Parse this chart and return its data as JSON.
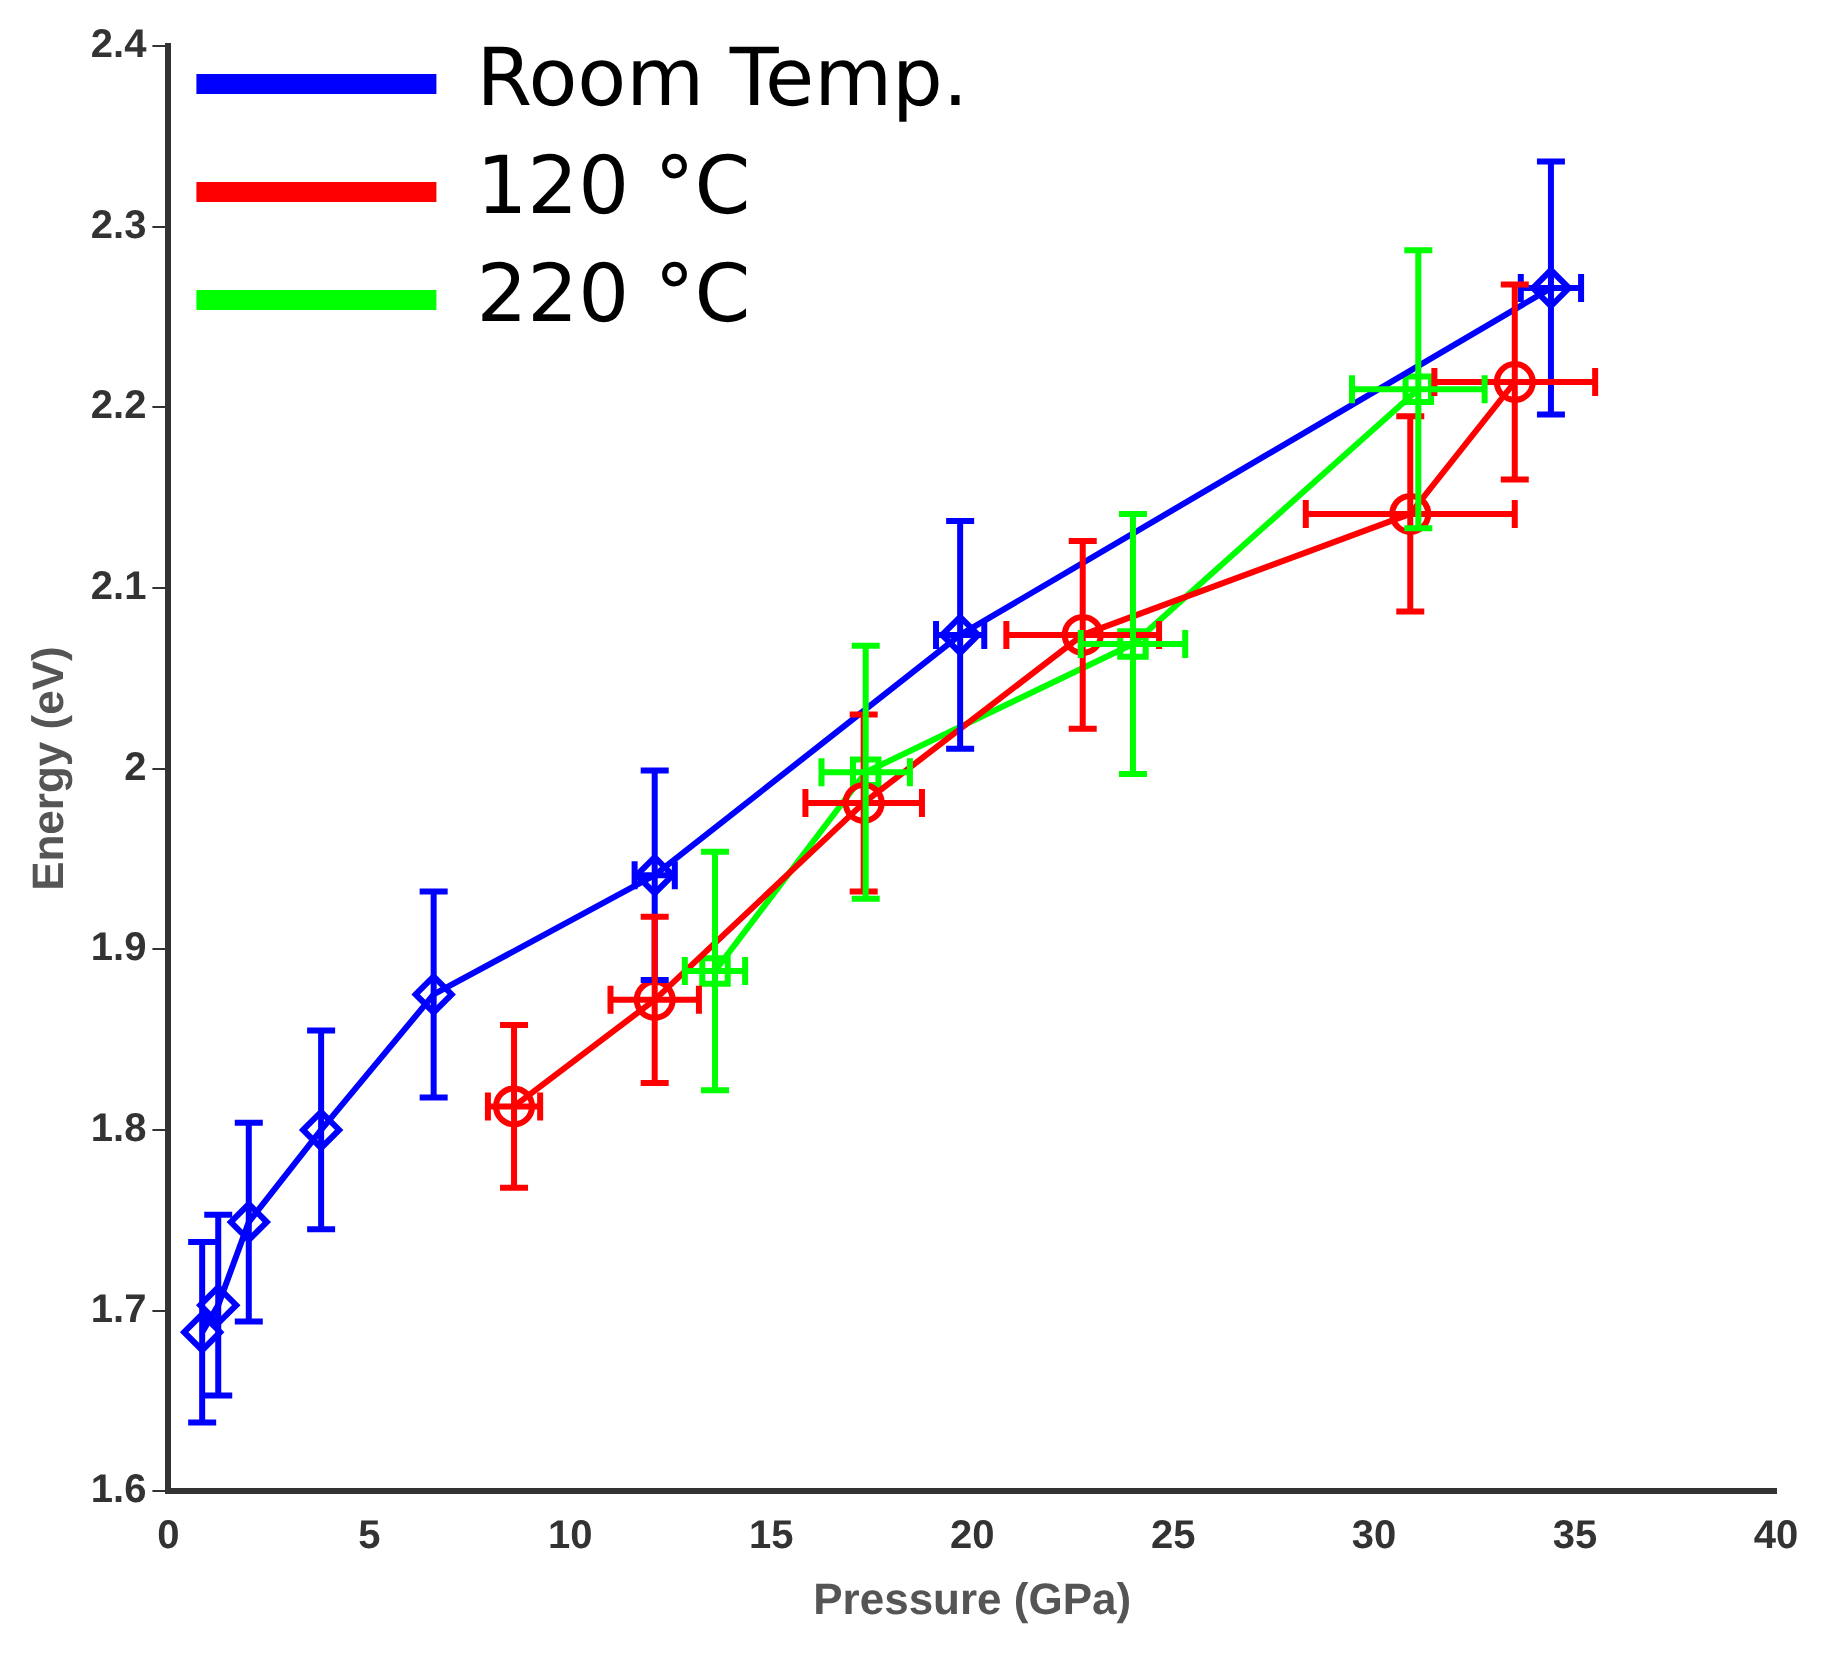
{
  "chart_data": {
    "type": "line",
    "xlabel": "Pressure (GPa)",
    "ylabel": "Energy (eV)",
    "xlim": [
      0,
      40
    ],
    "xticks": [
      0,
      5,
      10,
      15,
      20,
      25,
      30,
      35,
      40
    ],
    "ylim": [
      1.6,
      2.4
    ],
    "yticks": [
      1.6,
      1.7,
      1.8,
      1.9,
      2,
      2.1,
      2.2,
      2.3,
      2.4
    ],
    "grid": false,
    "legend": "top left",
    "line_style": "solid",
    "series": [
      {
        "name": "Room Temp.",
        "color": "#0000ff",
        "marker": "diamond",
        "x": [
          0.84,
          1.24,
          2.0,
          3.8,
          6.6,
          12.1,
          19.7,
          34.4
        ],
        "values": [
          1.688,
          1.703,
          1.749,
          1.8,
          1.875,
          1.941,
          2.074,
          2.266
        ],
        "errors": [
          0.05,
          0.05,
          0.055,
          0.055,
          0.057,
          0.058,
          0.063,
          0.07
        ],
        "xerrors": [
          null,
          null,
          null,
          null,
          null,
          0.5,
          0.6,
          0.75
        ]
      },
      {
        "name": "120 °C",
        "color": "#ff0000",
        "marker": "circle",
        "x": [
          8.6,
          12.1,
          17.3,
          22.75,
          30.9,
          33.5
        ],
        "values": [
          1.813,
          1.872,
          1.981,
          2.074,
          2.141,
          2.214
        ],
        "errors": [
          0.045,
          0.046,
          0.049,
          0.052,
          0.054,
          0.054
        ],
        "xerrors": [
          0.65,
          1.1,
          1.45,
          1.9,
          2.6,
          2.0
        ]
      },
      {
        "name": "220 °C",
        "color": "#00ff00",
        "marker": "square",
        "x": [
          13.6,
          17.35,
          24.0,
          31.1
        ],
        "values": [
          1.888,
          1.998,
          2.069,
          2.21
        ],
        "errors": [
          0.066,
          0.07,
          0.072,
          0.077
        ],
        "xerrors": [
          0.75,
          1.1,
          1.3,
          1.65
        ]
      }
    ]
  }
}
